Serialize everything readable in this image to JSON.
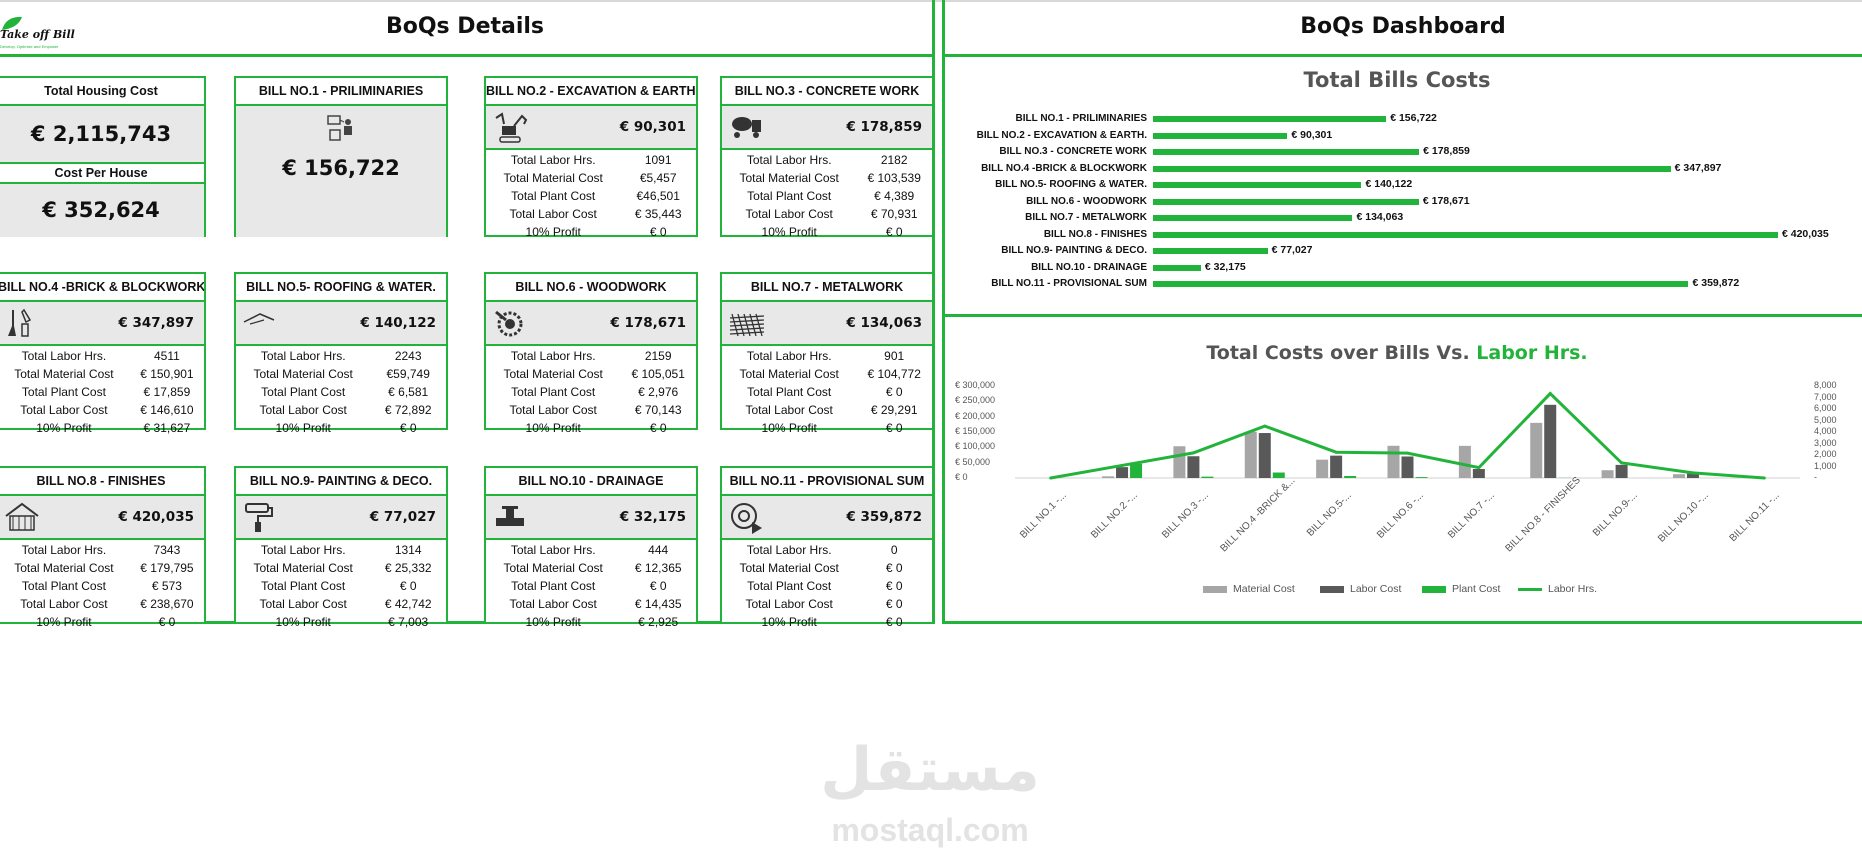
{
  "logo": {
    "text": "Take off Bill",
    "tagline": "Develop, Optimize and Empower"
  },
  "left_title": "BoQs Details",
  "right_title": "BoQs Dashboard",
  "summary": {
    "total_label": "Total Housing Cost",
    "total_value": "€ 2,115,743",
    "per_house_label": "Cost Per House",
    "per_house_value": "€ 352,624"
  },
  "bill1": {
    "title": "BILL NO.1 - PRILIMINARIES",
    "amount": "€ 156,722"
  },
  "row_labels": [
    "Total Labor Hrs.",
    "Total Material Cost",
    "Total Plant Cost",
    "Total Labor Cost",
    "10% Profit"
  ],
  "bills": [
    {
      "title": "BILL NO.2 - EXCAVATION & EARTH.",
      "amount": "€ 90,301",
      "icon": "excavator-icon",
      "values": [
        "1091",
        "€5,457",
        "€46,501",
        "€ 35,443",
        "€ 0"
      ]
    },
    {
      "title": "BILL NO.3 - CONCRETE WORK",
      "amount": "€ 178,859",
      "icon": "concrete-mixer-icon",
      "values": [
        "2182",
        "€ 103,539",
        "€ 4,389",
        "€ 70,931",
        "€ 0"
      ]
    },
    {
      "title": "BILL NO.4 -BRICK & BLOCKWORK",
      "amount": "€ 347,897",
      "icon": "trowel-icon",
      "values": [
        "4511",
        "€ 150,901",
        "€ 17,859",
        "€ 146,610",
        "€ 31,627"
      ]
    },
    {
      "title": "BILL NO.5- ROOFING & WATER.",
      "amount": "€ 140,122",
      "icon": "roof-icon",
      "values": [
        "2243",
        "€59,749",
        "€ 6,581",
        "€ 72,892",
        "€ 0"
      ]
    },
    {
      "title": "BILL NO.6 - WOODWORK",
      "amount": "€ 178,671",
      "icon": "saw-blade-icon",
      "values": [
        "2159",
        "€ 105,051",
        "€ 2,976",
        "€ 70,143",
        "€ 0"
      ]
    },
    {
      "title": "BILL NO.7 - METALWORK",
      "amount": "€ 134,063",
      "icon": "steel-mesh-icon",
      "values": [
        "901",
        "€ 104,772",
        "€ 0",
        "€ 29,291",
        "€ 0"
      ]
    },
    {
      "title": "BILL NO.8 - FINISHES",
      "amount": "€ 420,035",
      "icon": "house-frame-icon",
      "values": [
        "7343",
        "€ 179,795",
        "€ 573",
        "€ 238,670",
        "€ 0"
      ]
    },
    {
      "title": "BILL NO.9- PAINTING & DECO.",
      "amount": "€ 77,027",
      "icon": "paint-roller-icon",
      "values": [
        "1314",
        "€ 25,332",
        "€ 0",
        "€ 42,742",
        "€ 7,003"
      ]
    },
    {
      "title": "BILL NO.10 - DRAINAGE",
      "amount": "€ 32,175",
      "icon": "pipe-valve-icon",
      "values": [
        "444",
        "€ 12,365",
        "€ 0",
        "€ 14,435",
        "€ 2,925"
      ]
    },
    {
      "title": "BILL NO.11 - PROVISIONAL SUM",
      "amount": "€ 359,872",
      "icon": "target-play-icon",
      "values": [
        "0",
        "€ 0",
        "€ 0",
        "€ 0",
        "€ 0"
      ]
    }
  ],
  "chart_data": [
    {
      "type": "bar",
      "title": "Total Bills Costs",
      "orientation": "horizontal",
      "categories": [
        "BILL NO.1 - PRILIMINARIES",
        "BILL NO.2 - EXCAVATION & EARTH.",
        "BILL NO.3 - CONCRETE WORK",
        "BILL NO.4 -BRICK & BLOCKWORK",
        "BILL NO.5- ROOFING & WATER.",
        "BILL NO.6 - WOODWORK",
        "BILL NO.7 - METALWORK",
        "BILL NO.8 - FINISHES",
        "BILL NO.9- PAINTING & DECO.",
        "BILL NO.10 - DRAINAGE",
        "BILL NO.11 - PROVISIONAL SUM"
      ],
      "values": [
        156722,
        90301,
        178859,
        347897,
        140122,
        178671,
        134063,
        420035,
        77027,
        32175,
        359872
      ],
      "value_labels": [
        "€ 156,722",
        "€ 90,301",
        "€ 178,859",
        "€ 347,897",
        "€ 140,122",
        "€ 178,671",
        "€ 134,063",
        "€ 420,035",
        "€ 77,027",
        "€ 32,175",
        "€ 359,872"
      ],
      "color": "#22b33a"
    },
    {
      "type": "bar",
      "title_part1": "Total Costs over Bills Vs. ",
      "title_part2": "Labor Hrs.",
      "categories": [
        "BILL NO.1 -...",
        "BILL NO.2 -...",
        "BILL NO.3 -...",
        "BILL NO.4 -BRICK &...",
        "BILL NO.5-...",
        "BILL NO.6 -...",
        "BILL NO.7 -...",
        "BILL NO.8 - FINISHES",
        "BILL NO.9-...",
        "BILL NO.10 -...",
        "BILL NO.11 -..."
      ],
      "series": [
        {
          "name": "Material Cost",
          "kind": "bar",
          "color": "#a6a6a6",
          "values": [
            0,
            5457,
            103539,
            150901,
            59749,
            105051,
            104772,
            179795,
            25332,
            12365,
            0
          ]
        },
        {
          "name": "Labor Cost",
          "kind": "bar",
          "color": "#595959",
          "values": [
            0,
            35443,
            70931,
            146610,
            72892,
            70143,
            29291,
            238670,
            42742,
            14435,
            0
          ]
        },
        {
          "name": "Plant Cost",
          "kind": "bar",
          "color": "#22b33a",
          "values": [
            0,
            46501,
            4389,
            17859,
            6581,
            2976,
            0,
            573,
            0,
            0,
            0
          ]
        },
        {
          "name": "Labor Hrs.",
          "kind": "line",
          "axis": "secondary",
          "color": "#22b33a",
          "values": [
            0,
            1091,
            2182,
            4511,
            2243,
            2159,
            901,
            7343,
            1314,
            444,
            0
          ]
        }
      ],
      "y_ticks": [
        "€ 300,000",
        "€ 250,000",
        "€ 200,000",
        "€ 150,000",
        "€ 100,000",
        "€ 50,000",
        "€ 0"
      ],
      "y2_ticks": [
        "8,000",
        "7,000",
        "6,000",
        "5,000",
        "4,000",
        "3,000",
        "2,000",
        "1,000",
        "-"
      ],
      "ylim": [
        0,
        300000
      ],
      "y2lim": [
        0,
        8000
      ],
      "legend": "bottom"
    }
  ],
  "watermark": {
    "arabic": "مستقل",
    "latin": "mostaql.com"
  }
}
